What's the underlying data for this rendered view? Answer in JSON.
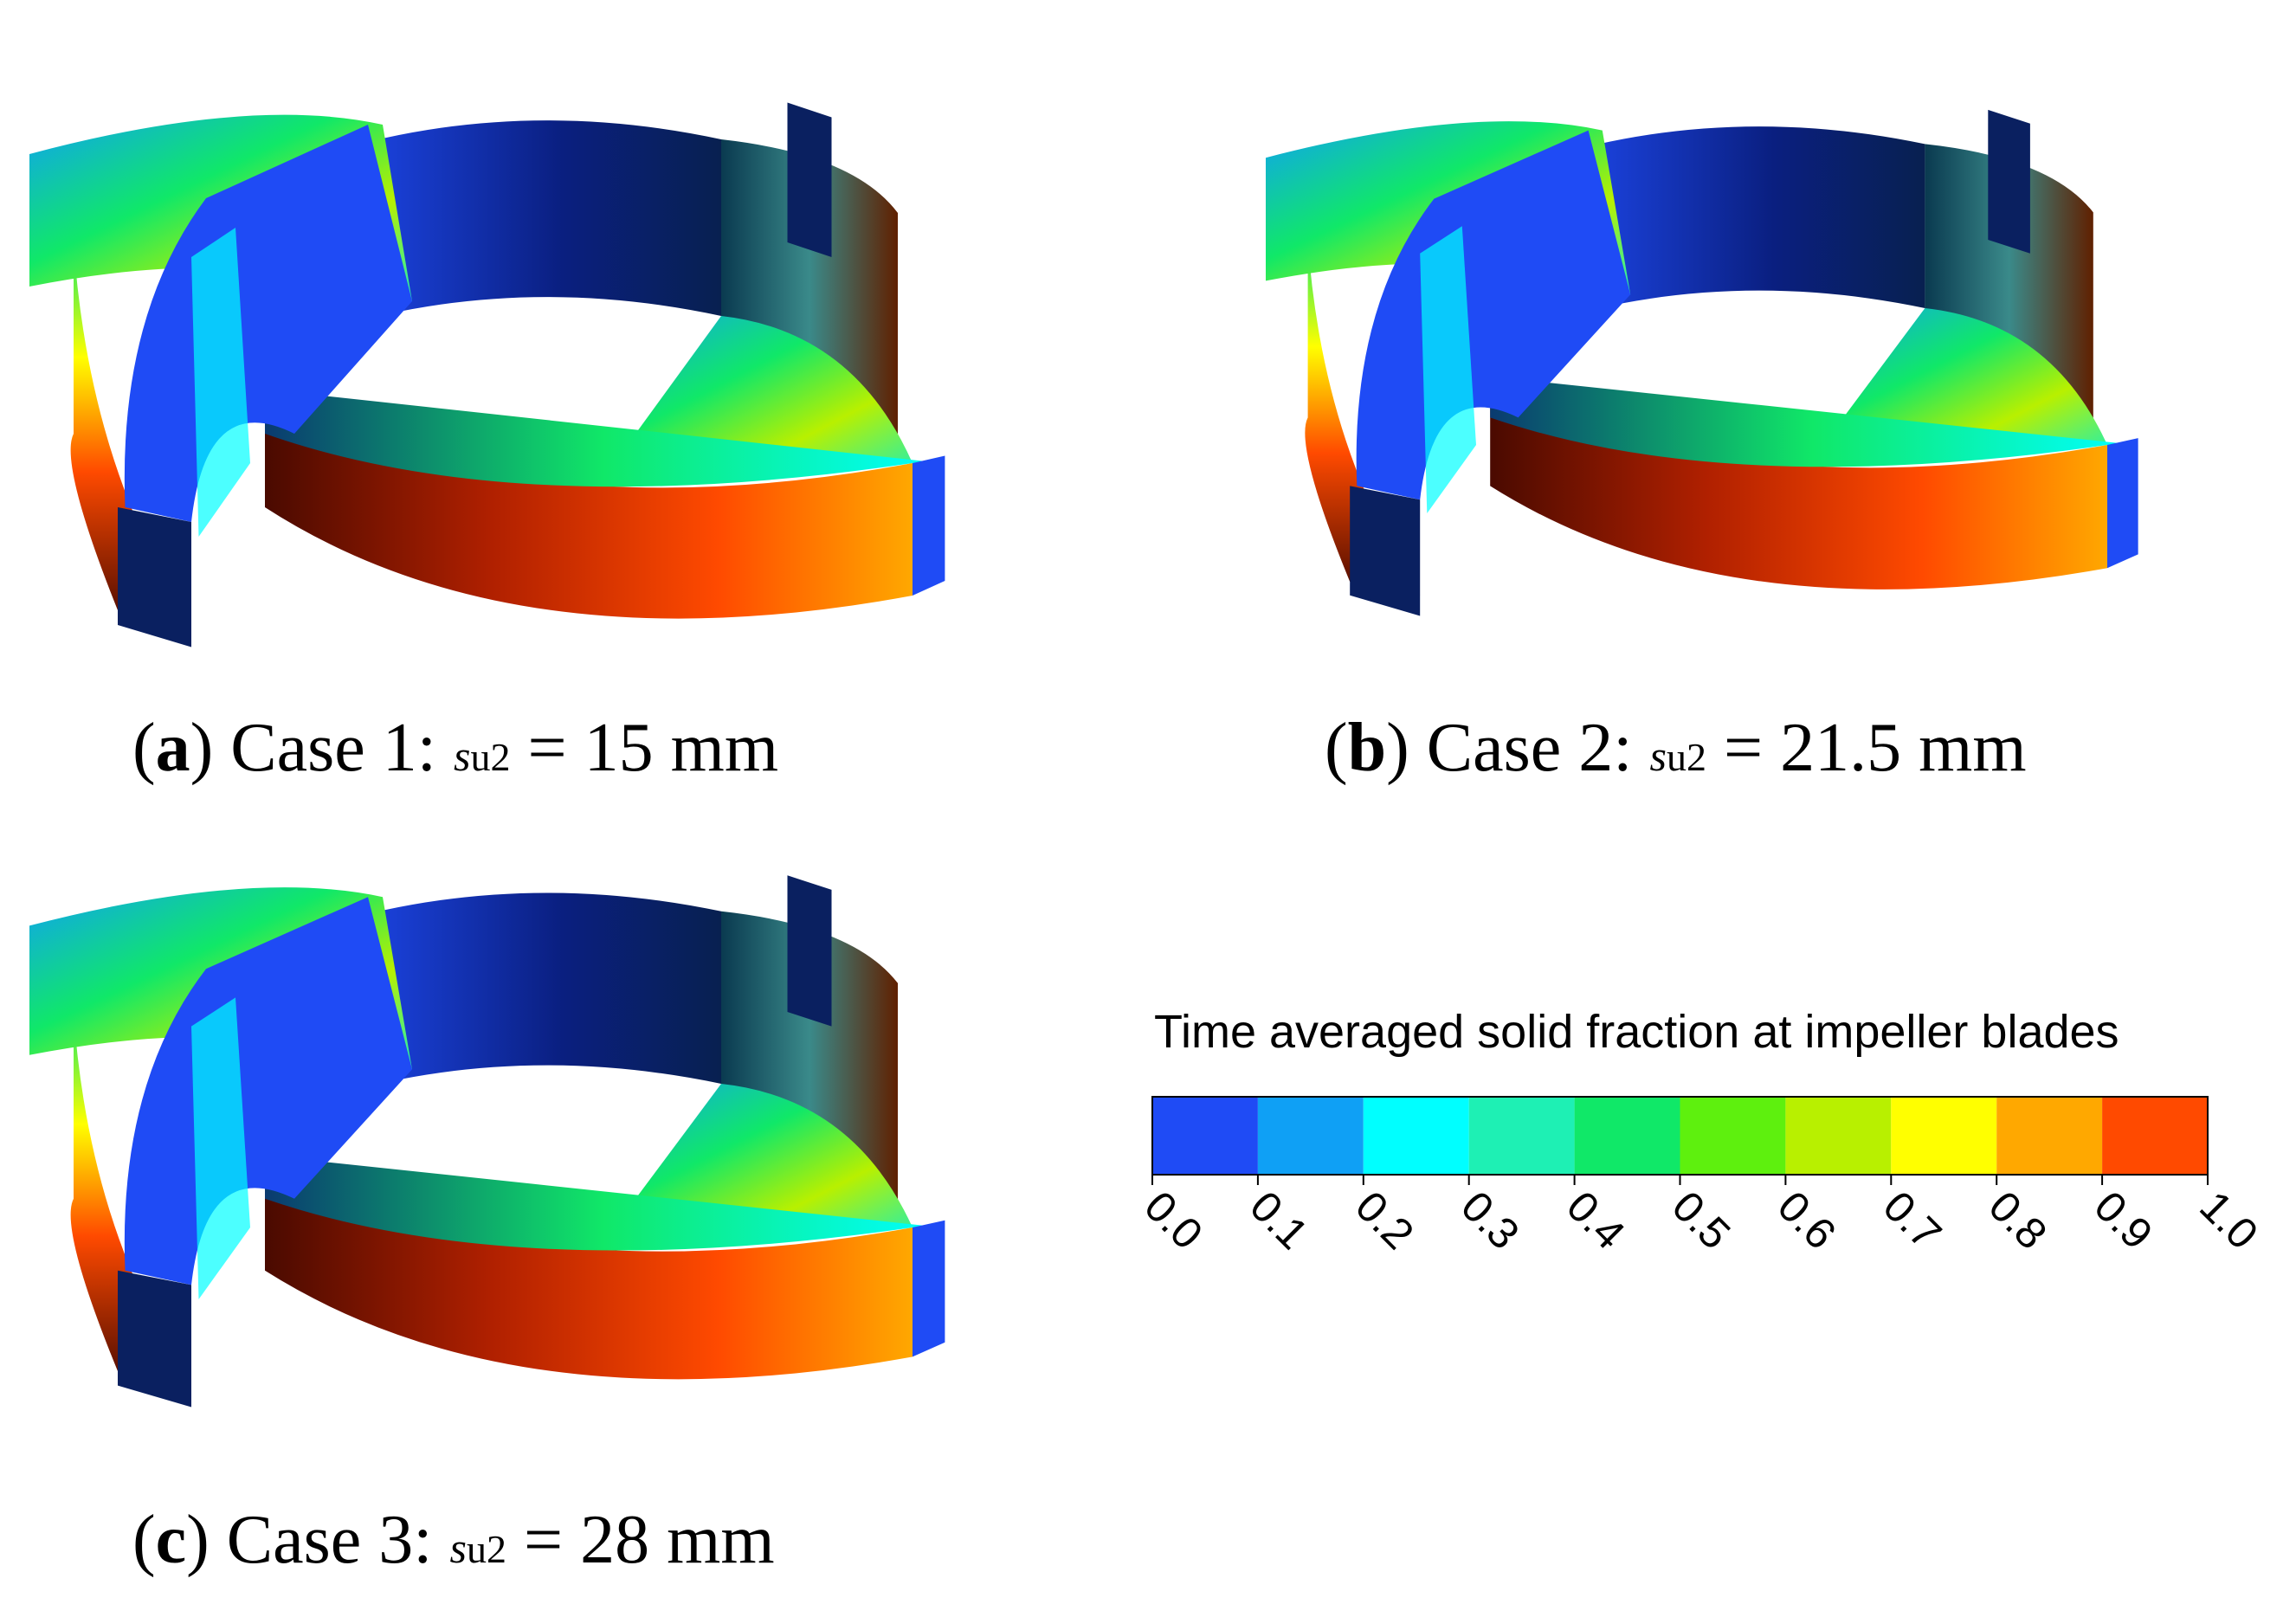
{
  "panels": [
    {
      "open": "(",
      "label": "a",
      "case": ") Case 1: ",
      "symbol": "s",
      "subscript": "u2",
      "value": " = 15 mm"
    },
    {
      "open": "(",
      "label": "b",
      "case": ") Case 2: ",
      "symbol": "s",
      "subscript": "u2",
      "value": " = 21.5 mm"
    },
    {
      "open": "(",
      "label": "c",
      "case": ") Case 3: ",
      "symbol": "s",
      "subscript": "u2",
      "value": " = 28 mm"
    }
  ],
  "colorbar": {
    "title": "Time averaged solid fraction at impeller blades",
    "lim": [
      0,
      1
    ],
    "ticks": [
      {
        "value": 0,
        "label": "0.0"
      },
      {
        "value": 0.1,
        "label": "0.1"
      },
      {
        "value": 0.2,
        "label": "0.2"
      },
      {
        "value": 0.3,
        "label": "0.3"
      },
      {
        "value": 0.4,
        "label": "0.4"
      },
      {
        "value": 0.5,
        "label": "0.5"
      },
      {
        "value": 0.6,
        "label": "0.6"
      },
      {
        "value": 0.7,
        "label": "0.7"
      },
      {
        "value": 0.8,
        "label": "0.8"
      },
      {
        "value": 0.9,
        "label": "0.9"
      },
      {
        "value": 1,
        "label": "1.0"
      }
    ],
    "colors": [
      "#1f4bf5",
      "#0fa0f5",
      "#00ffff",
      "#1ef0b4",
      "#10e868",
      "#5ef00e",
      "#b8f000",
      "#ffff00",
      "#ffa800",
      "#ff4a00"
    ]
  }
}
